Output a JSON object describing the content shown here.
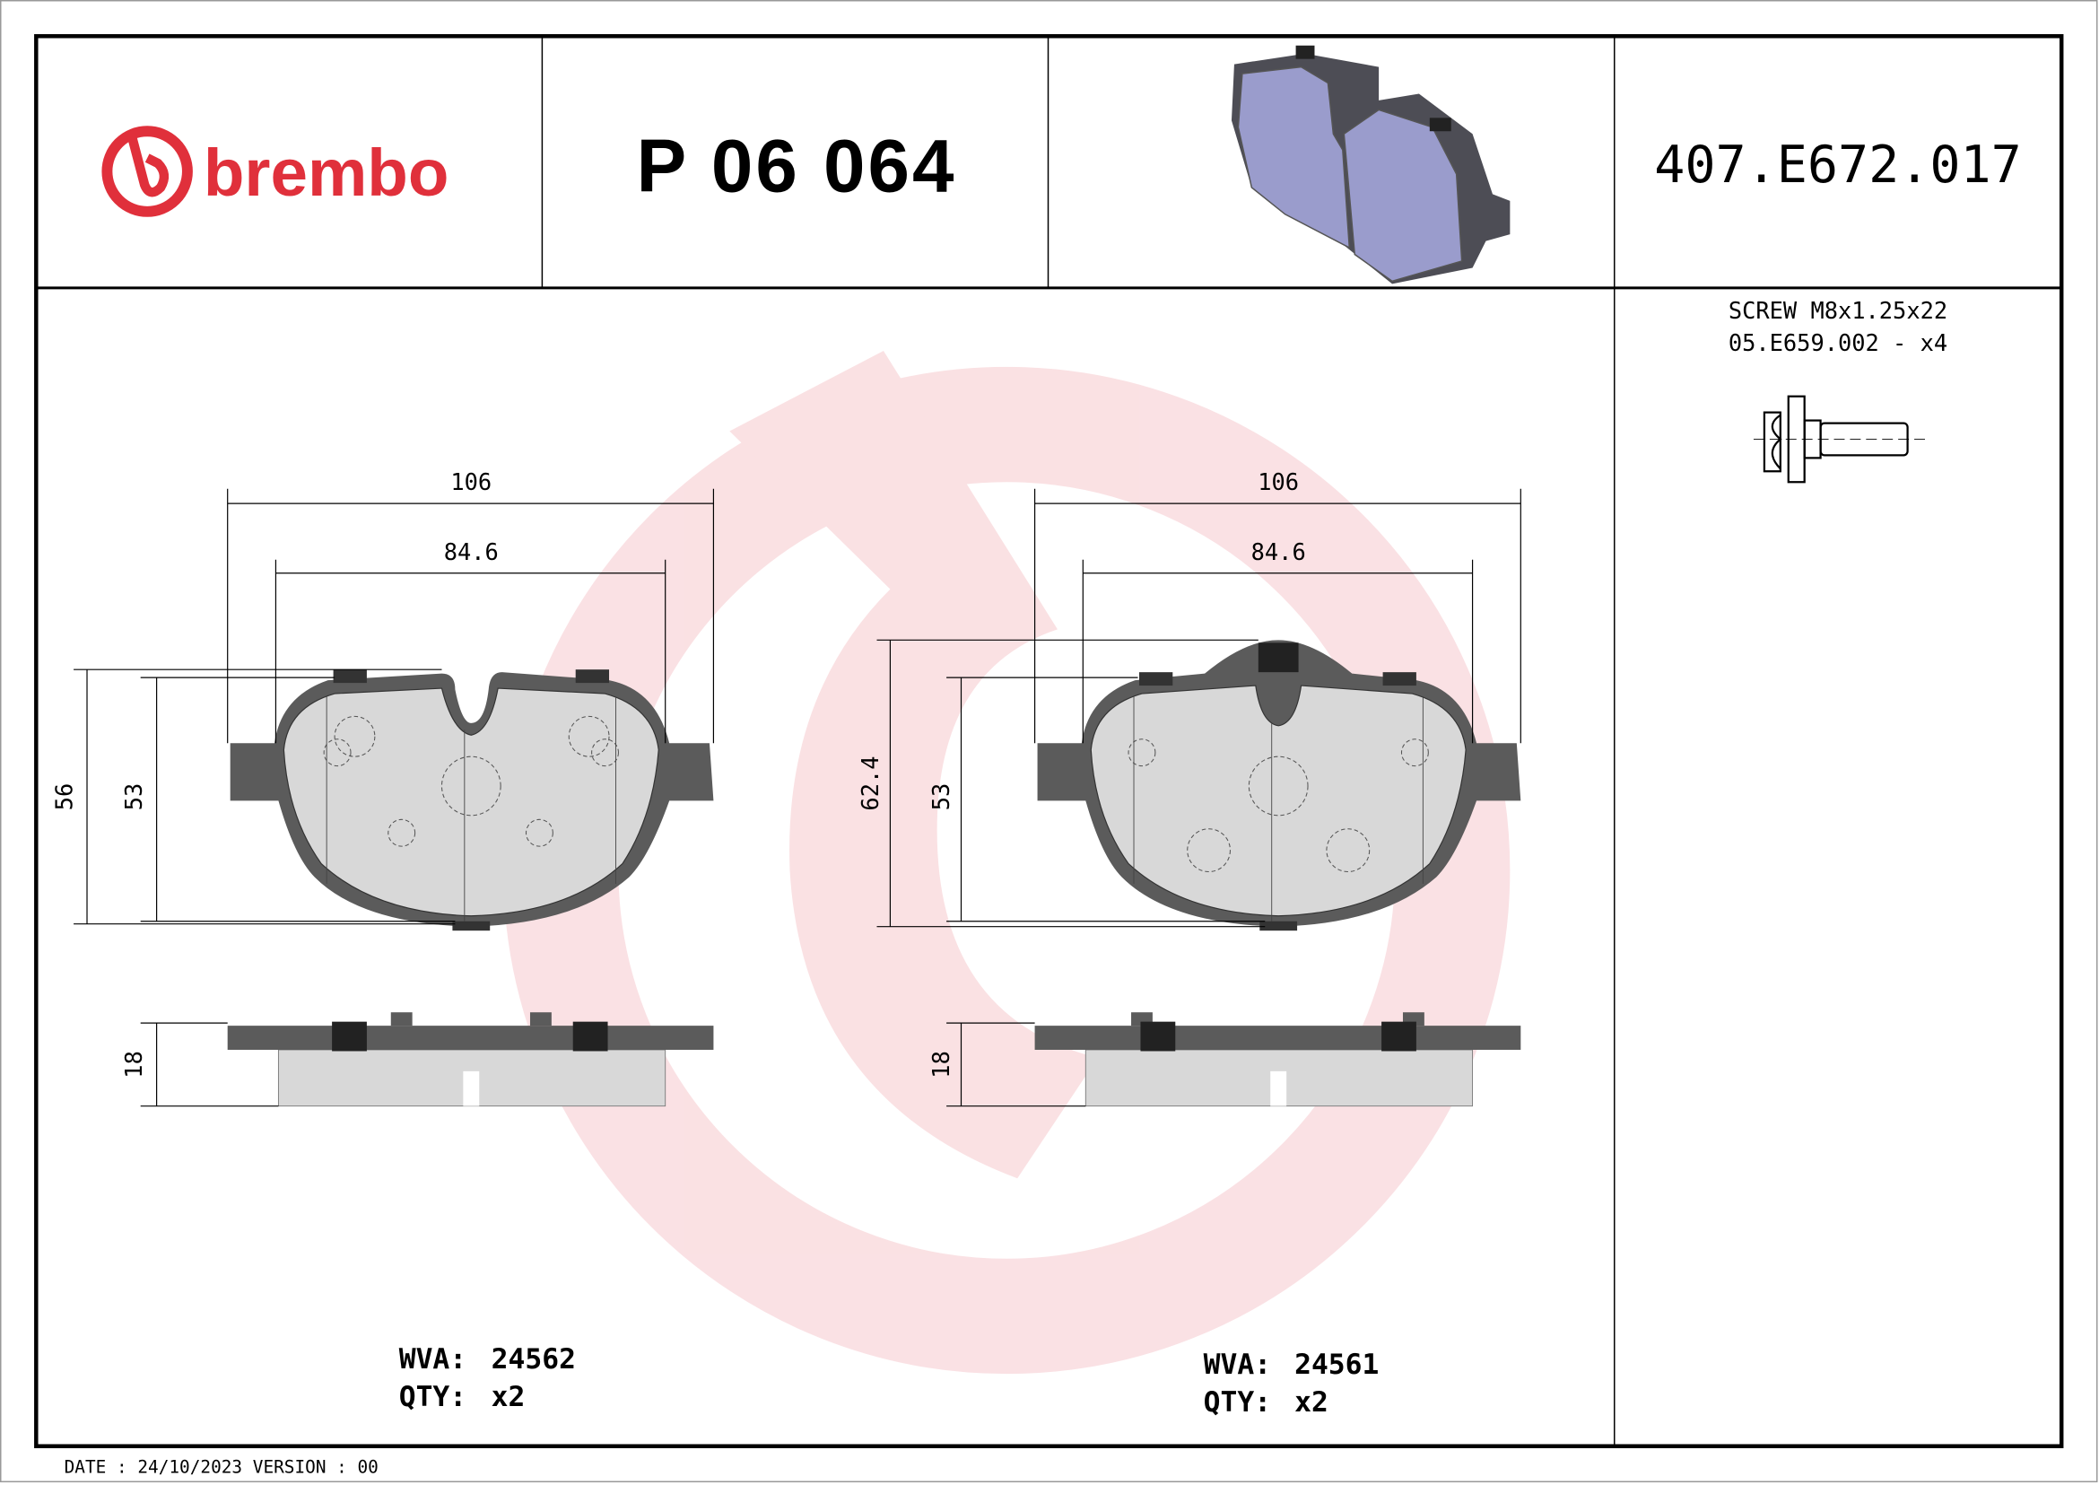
{
  "header": {
    "brand": "brembo",
    "part_number": "P 06 064",
    "reference_code": "407.E672.017"
  },
  "accessory": {
    "line1": "SCREW M8x1.25x22",
    "line2": "05.E659.002 - x4",
    "icon": "screw-icon"
  },
  "pads": [
    {
      "width_overall": "106",
      "width_friction": "84.6",
      "height_overall": "56",
      "height_friction": "53",
      "thickness": "18",
      "wva_label": "WVA:",
      "wva": "24562",
      "qty_label": "QTY:",
      "qty": "x2"
    },
    {
      "width_overall": "106",
      "width_friction": "84.6",
      "height_overall": "62.4",
      "height_friction": "53",
      "thickness": "18",
      "wva_label": "WVA:",
      "wva": "24561",
      "qty_label": "QTY:",
      "qty": "x2"
    }
  ],
  "footer": {
    "date_version": "DATE : 24/10/2023 VERSION : 00"
  },
  "colors": {
    "brand_red": "#e0303b",
    "watermark": "#f6d3d6",
    "backplate": "#5b5b5b",
    "friction": "#d8d8d8",
    "pad_render": "#9a9ccc"
  }
}
